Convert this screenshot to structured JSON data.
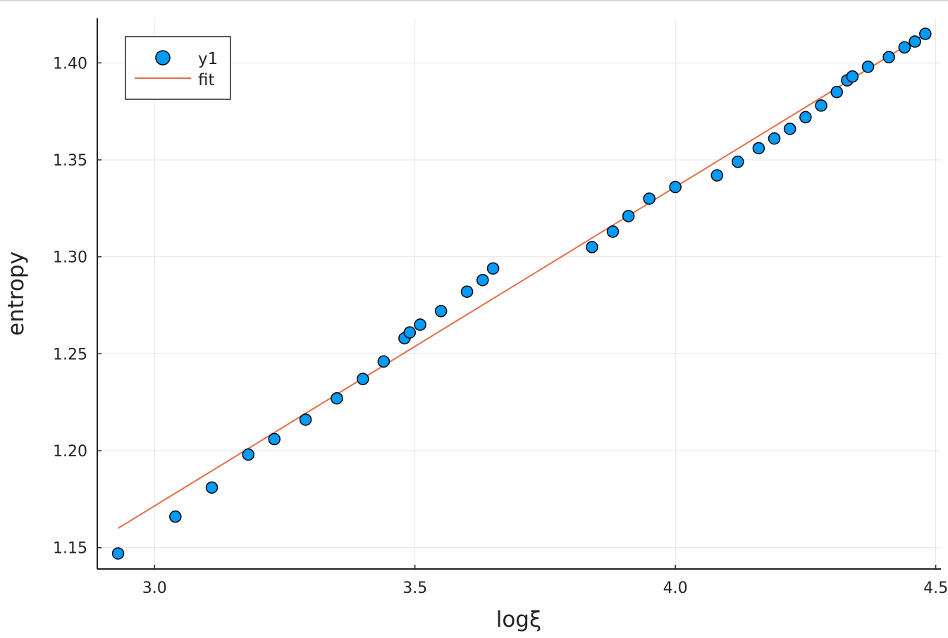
{
  "chart_data": {
    "type": "scatter",
    "title": "",
    "xlabel": "logξ",
    "ylabel": "entropy",
    "xlim": [
      2.89,
      4.51
    ],
    "ylim": [
      1.139,
      1.423
    ],
    "xticks": [
      3.0,
      3.5,
      4.0,
      4.5
    ],
    "xtick_labels": [
      "3.0",
      "3.5",
      "4.0",
      "4.5"
    ],
    "yticks": [
      1.15,
      1.2,
      1.25,
      1.3,
      1.35,
      1.4
    ],
    "ytick_labels": [
      "1.15",
      "1.20",
      "1.25",
      "1.30",
      "1.35",
      "1.40"
    ],
    "grid": true,
    "legend_position": "top-left",
    "series": [
      {
        "name": "y1",
        "kind": "scatter",
        "color": "#009af9",
        "x": [
          2.93,
          3.04,
          3.11,
          3.18,
          3.23,
          3.29,
          3.35,
          3.4,
          3.44,
          3.48,
          3.49,
          3.51,
          3.55,
          3.6,
          3.63,
          3.65,
          3.84,
          3.88,
          3.91,
          3.95,
          4.0,
          4.08,
          4.12,
          4.16,
          4.19,
          4.22,
          4.25,
          4.28,
          4.31,
          4.33,
          4.34,
          4.37,
          4.41,
          4.44,
          4.46,
          4.48
        ],
        "y": [
          1.147,
          1.166,
          1.181,
          1.198,
          1.206,
          1.216,
          1.227,
          1.237,
          1.246,
          1.258,
          1.261,
          1.265,
          1.272,
          1.282,
          1.288,
          1.294,
          1.305,
          1.313,
          1.321,
          1.33,
          1.336,
          1.342,
          1.349,
          1.356,
          1.361,
          1.366,
          1.372,
          1.378,
          1.385,
          1.391,
          1.393,
          1.398,
          1.403,
          1.408,
          1.411,
          1.415
        ]
      },
      {
        "name": "fit",
        "kind": "line",
        "color": "#e26f46",
        "x": [
          2.93,
          4.48
        ],
        "y": [
          1.16,
          1.415
        ]
      }
    ]
  },
  "colors": {
    "axis": "#222222",
    "grid": "#e6e6e6",
    "marker_stroke": "#000000"
  }
}
